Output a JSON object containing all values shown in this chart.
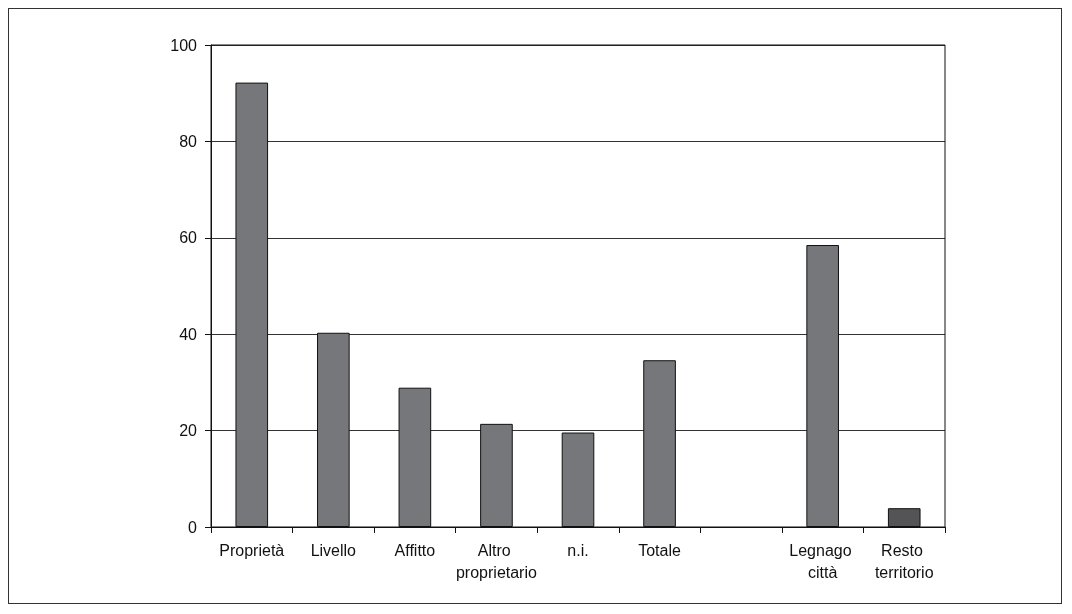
{
  "chart_data": {
    "type": "bar",
    "categories": [
      "Proprietà",
      "Livello",
      "Affitto",
      "Altro proprietario",
      "n.i.",
      "Totale",
      null,
      "Legnago città",
      "Resto territorio"
    ],
    "values": [
      92.2,
      40.3,
      28.9,
      21.4,
      19.6,
      34.6,
      null,
      58.5,
      3.9
    ],
    "colors": [
      "#76777b",
      "#76777b",
      "#76777b",
      "#76777b",
      "#76777b",
      "#76777b",
      "#76777b",
      "#76777b",
      "#545457"
    ],
    "ylim": [
      0,
      100
    ],
    "yticks": [
      0,
      20,
      40,
      60,
      80,
      100
    ],
    "grid": "y"
  }
}
